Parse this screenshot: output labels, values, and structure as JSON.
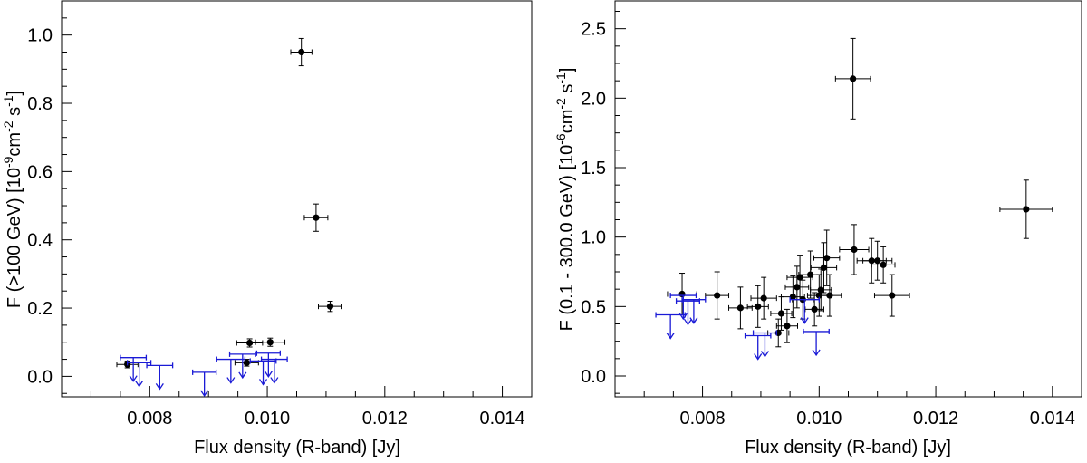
{
  "chart_data": [
    {
      "type": "scatter",
      "title": "",
      "xlabel": "Flux density (R-band) [Jy]",
      "ylabel": "F (>100 GeV) [10^-9 cm^-2 s^-1]",
      "ylabel_parts": {
        "pre": "F (>100 GeV) [10",
        "exp1": "-9",
        "mid": "cm",
        "exp2": "-2",
        "post": " s",
        "exp3": "-1",
        "end": "]"
      },
      "xlim": [
        0.0065,
        0.0145
      ],
      "ylim": [
        -0.06,
        1.1
      ],
      "xticks": [
        0.008,
        0.01,
        0.012,
        0.014
      ],
      "xtick_labels": [
        "0.008",
        "0.010",
        "0.012",
        "0.014"
      ],
      "yticks": [
        0.0,
        0.2,
        0.4,
        0.6,
        0.8,
        1.0
      ],
      "ytick_labels": [
        "0.0",
        "0.2",
        "0.4",
        "0.6",
        "0.8",
        "1.0"
      ],
      "grid": false,
      "colors": {
        "detection": "#000000",
        "upper_limit": "#1a1ad6"
      },
      "series": [
        {
          "kind": "detection",
          "points": [
            {
              "x": 0.00762,
              "y": 0.035,
              "xerr": 0.00018,
              "yerr": 0.01
            },
            {
              "x": 0.00965,
              "y": 0.04,
              "xerr": 0.0002,
              "yerr": 0.01
            },
            {
              "x": 0.0097,
              "y": 0.098,
              "xerr": 0.00022,
              "yerr": 0.012
            },
            {
              "x": 0.01005,
              "y": 0.1,
              "xerr": 0.00025,
              "yerr": 0.012
            },
            {
              "x": 0.01058,
              "y": 0.95,
              "xerr": 0.00018,
              "yerr": 0.04
            },
            {
              "x": 0.01083,
              "y": 0.465,
              "xerr": 0.0002,
              "yerr": 0.04
            },
            {
              "x": 0.01107,
              "y": 0.205,
              "xerr": 0.0002,
              "yerr": 0.015
            }
          ]
        },
        {
          "kind": "upper_limit",
          "points": [
            {
              "x": 0.00772,
              "y": 0.055,
              "xerr": 0.00022
            },
            {
              "x": 0.00782,
              "y": 0.04,
              "xerr": 0.0002
            },
            {
              "x": 0.00817,
              "y": 0.032,
              "xerr": 0.00022
            },
            {
              "x": 0.00893,
              "y": 0.012,
              "xerr": 0.0002
            },
            {
              "x": 0.00938,
              "y": 0.05,
              "xerr": 0.00024
            },
            {
              "x": 0.00958,
              "y": 0.065,
              "xerr": 0.00022
            },
            {
              "x": 0.00993,
              "y": 0.045,
              "xerr": 0.00022
            },
            {
              "x": 0.01002,
              "y": 0.068,
              "xerr": 0.0002
            },
            {
              "x": 0.01012,
              "y": 0.05,
              "xerr": 0.00022
            }
          ]
        }
      ]
    },
    {
      "type": "scatter",
      "title": "",
      "xlabel": "Flux density (R-band) [Jy]",
      "ylabel": "F (0.1 - 300.0 GeV) [10^-6 cm^-2 s^-1]",
      "ylabel_parts": {
        "pre": "F (0.1 - 300.0 GeV) [10",
        "exp1": "-6",
        "mid": "cm",
        "exp2": "-2",
        "post": " s",
        "exp3": "-1",
        "end": "]"
      },
      "xlim": [
        0.0065,
        0.0145
      ],
      "ylim": [
        -0.15,
        2.7
      ],
      "xticks": [
        0.008,
        0.01,
        0.012,
        0.014
      ],
      "xtick_labels": [
        "0.008",
        "0.010",
        "0.012",
        "0.014"
      ],
      "yticks": [
        0.0,
        0.5,
        1.0,
        1.5,
        2.0,
        2.5
      ],
      "ytick_labels": [
        "0.0",
        "0.5",
        "1.0",
        "1.5",
        "2.0",
        "2.5"
      ],
      "grid": false,
      "colors": {
        "detection": "#000000",
        "upper_limit": "#1a1ad6"
      },
      "series": [
        {
          "kind": "detection",
          "points": [
            {
              "x": 0.00765,
              "y": 0.59,
              "xerr": 0.00025,
              "yerr": 0.15
            },
            {
              "x": 0.00825,
              "y": 0.58,
              "xerr": 0.0002,
              "yerr": 0.17
            },
            {
              "x": 0.00865,
              "y": 0.49,
              "xerr": 0.0002,
              "yerr": 0.15
            },
            {
              "x": 0.00895,
              "y": 0.5,
              "xerr": 0.00018,
              "yerr": 0.15
            },
            {
              "x": 0.00905,
              "y": 0.56,
              "xerr": 0.00022,
              "yerr": 0.15
            },
            {
              "x": 0.0093,
              "y": 0.31,
              "xerr": 0.00018,
              "yerr": 0.1
            },
            {
              "x": 0.00935,
              "y": 0.45,
              "xerr": 0.00018,
              "yerr": 0.12
            },
            {
              "x": 0.00945,
              "y": 0.36,
              "xerr": 0.00018,
              "yerr": 0.12
            },
            {
              "x": 0.00955,
              "y": 0.57,
              "xerr": 0.0002,
              "yerr": 0.15
            },
            {
              "x": 0.00962,
              "y": 0.64,
              "xerr": 0.0002,
              "yerr": 0.15
            },
            {
              "x": 0.00967,
              "y": 0.71,
              "xerr": 0.00022,
              "yerr": 0.16
            },
            {
              "x": 0.00972,
              "y": 0.55,
              "xerr": 0.00018,
              "yerr": 0.14
            },
            {
              "x": 0.00985,
              "y": 0.73,
              "xerr": 0.0002,
              "yerr": 0.17
            },
            {
              "x": 0.00992,
              "y": 0.48,
              "xerr": 0.00016,
              "yerr": 0.12
            },
            {
              "x": 0.01,
              "y": 0.58,
              "xerr": 0.0002,
              "yerr": 0.15
            },
            {
              "x": 0.01003,
              "y": 0.62,
              "xerr": 0.00018,
              "yerr": 0.15
            },
            {
              "x": 0.01008,
              "y": 0.78,
              "xerr": 0.00022,
              "yerr": 0.18
            },
            {
              "x": 0.01013,
              "y": 0.85,
              "xerr": 0.00022,
              "yerr": 0.2
            },
            {
              "x": 0.01018,
              "y": 0.58,
              "xerr": 0.0002,
              "yerr": 0.15
            },
            {
              "x": 0.01058,
              "y": 2.14,
              "xerr": 0.0003,
              "yerr": 0.29
            },
            {
              "x": 0.0106,
              "y": 0.91,
              "xerr": 0.00025,
              "yerr": 0.18
            },
            {
              "x": 0.0109,
              "y": 0.83,
              "xerr": 0.00025,
              "yerr": 0.16
            },
            {
              "x": 0.011,
              "y": 0.83,
              "xerr": 0.00025,
              "yerr": 0.14
            },
            {
              "x": 0.0111,
              "y": 0.8,
              "xerr": 0.0002,
              "yerr": 0.13
            },
            {
              "x": 0.01125,
              "y": 0.58,
              "xerr": 0.0003,
              "yerr": 0.15
            },
            {
              "x": 0.01355,
              "y": 1.2,
              "xerr": 0.00045,
              "yerr": 0.21
            }
          ]
        },
        {
          "kind": "upper_limit",
          "points": [
            {
              "x": 0.00745,
              "y": 0.44,
              "xerr": 0.00025
            },
            {
              "x": 0.00767,
              "y": 0.58,
              "xerr": 0.00022
            },
            {
              "x": 0.00775,
              "y": 0.54,
              "xerr": 0.0002
            },
            {
              "x": 0.00785,
              "y": 0.55,
              "xerr": 0.0002
            },
            {
              "x": 0.00895,
              "y": 0.29,
              "xerr": 0.00022
            },
            {
              "x": 0.00907,
              "y": 0.31,
              "xerr": 0.0002
            },
            {
              "x": 0.00975,
              "y": 0.55,
              "xerr": 0.00025
            },
            {
              "x": 0.00995,
              "y": 0.32,
              "xerr": 0.00022
            }
          ]
        }
      ]
    }
  ]
}
